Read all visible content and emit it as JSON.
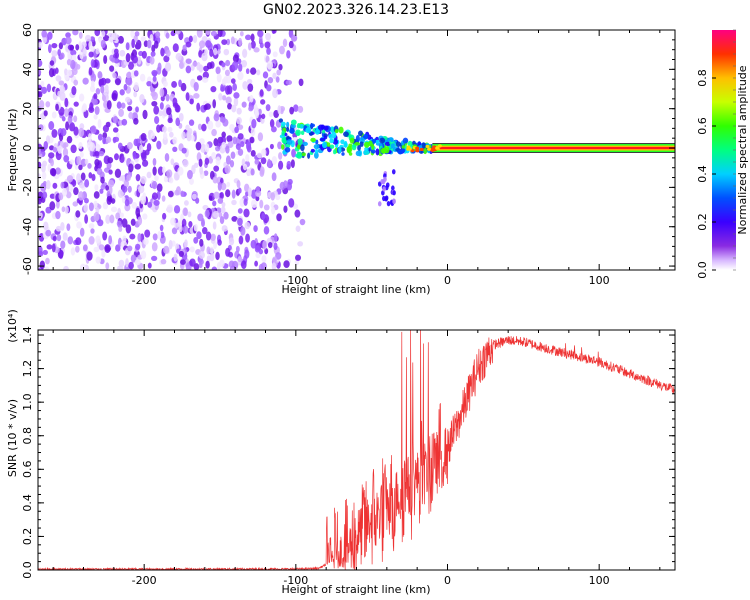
{
  "title": "GN02.2023.326.14.23.E13",
  "chart_data": [
    {
      "type": "heatmap",
      "xlabel": "Height of straight line (km)",
      "ylabel": "Frequency (Hz)",
      "xlim": [
        -270,
        150
      ],
      "ylim": [
        -62,
        60
      ],
      "x_ticks": [
        -200,
        -100,
        0,
        100
      ],
      "y_ticks": [
        -60,
        -40,
        -20,
        0,
        20,
        40,
        60
      ],
      "colorbar": {
        "label": "Normalized spectral amplitude",
        "range": [
          0,
          1
        ],
        "ticks": [
          "0.0",
          "0.2",
          "0.4",
          "0.6",
          "0.8"
        ]
      },
      "regions": [
        {
          "name": "broadband noise",
          "x_range": [
            -270,
            -100
          ],
          "freq_range": [
            -62,
            60
          ]
        },
        {
          "name": "signal onset",
          "x_range": [
            -110,
            -10
          ],
          "freq_range": [
            -30,
            15
          ]
        },
        {
          "name": "narrow line",
          "x_range": [
            -10,
            150
          ],
          "freq": 0
        }
      ]
    },
    {
      "type": "line",
      "xlabel": "Height of straight line (km)",
      "ylabel": "SNR (10 * v/v)",
      "y_multiplier": "(x10⁴)",
      "xlim": [
        -270,
        150
      ],
      "ylim": [
        0,
        1.43
      ],
      "x_ticks": [
        -200,
        -100,
        0,
        100
      ],
      "y_ticks": [
        "0.0",
        "0.2",
        "0.4",
        "0.6",
        "0.8",
        "1.0",
        "1.2",
        "1.4"
      ],
      "color": "#ee3333",
      "envelope": {
        "x": [
          -270,
          -200,
          -100,
          -85,
          -70,
          -60,
          -50,
          -40,
          -30,
          -20,
          -10,
          0,
          10,
          20,
          30,
          40,
          50,
          70,
          100,
          120,
          150
        ],
        "y": [
          0.005,
          0.005,
          0.006,
          0.01,
          0.08,
          0.2,
          0.3,
          0.38,
          0.48,
          0.55,
          0.62,
          0.72,
          0.95,
          1.2,
          1.34,
          1.37,
          1.36,
          1.31,
          1.24,
          1.17,
          1.07
        ]
      }
    }
  ]
}
